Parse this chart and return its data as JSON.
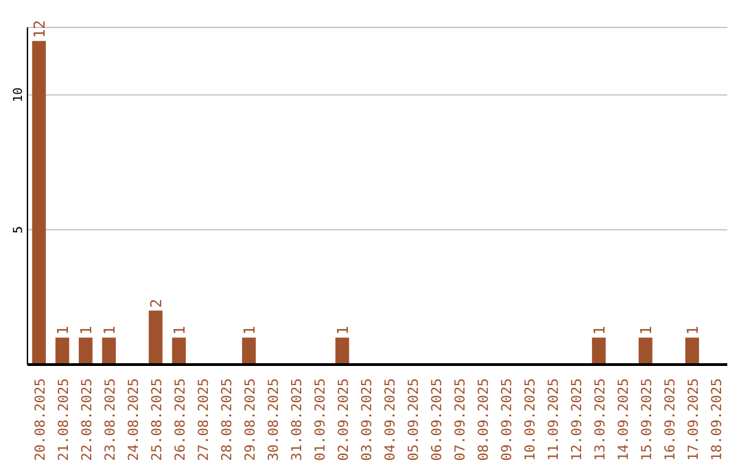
{
  "chart_data": {
    "type": "bar",
    "categories": [
      "20.08.2025",
      "21.08.2025",
      "22.08.2025",
      "23.08.2025",
      "24.08.2025",
      "25.08.2025",
      "26.08.2025",
      "27.08.2025",
      "28.08.2025",
      "29.08.2025",
      "30.08.2025",
      "31.08.2025",
      "01.09.2025",
      "02.09.2025",
      "03.09.2025",
      "04.09.2025",
      "05.09.2025",
      "06.09.2025",
      "07.09.2025",
      "08.09.2025",
      "09.09.2025",
      "10.09.2025",
      "11.09.2025",
      "12.09.2025",
      "13.09.2025",
      "14.09.2025",
      "15.09.2025",
      "16.09.2025",
      "17.09.2025",
      "18.09.2025"
    ],
    "values": [
      12,
      1,
      1,
      1,
      0,
      2,
      1,
      0,
      0,
      1,
      0,
      0,
      0,
      1,
      0,
      0,
      0,
      0,
      0,
      0,
      0,
      0,
      0,
      0,
      1,
      0,
      1,
      0,
      1,
      0
    ],
    "value_labels": [
      "12",
      "1",
      "1",
      "1",
      null,
      "2",
      "1",
      null,
      null,
      "1",
      null,
      null,
      null,
      "1",
      null,
      null,
      null,
      null,
      null,
      null,
      null,
      null,
      null,
      null,
      "1",
      null,
      "1",
      null,
      "1",
      null
    ],
    "color": "#a0522d",
    "ylim": [
      0,
      12.5
    ],
    "yticks": [
      5,
      10
    ],
    "grid": "y",
    "legend": false
  }
}
